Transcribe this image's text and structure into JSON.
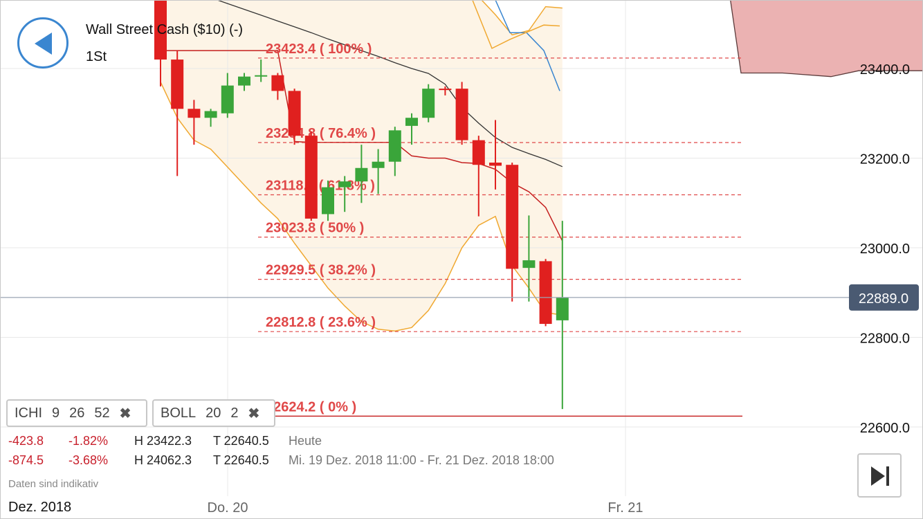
{
  "header": {
    "title": "Wall Street Cash ($10) (-)",
    "timeframe": "1St"
  },
  "indicators": [
    {
      "name": "ICHI",
      "params": [
        "9",
        "26",
        "52"
      ],
      "close": "✖"
    },
    {
      "name": "BOLL",
      "params": [
        "20",
        "2"
      ],
      "close": "✖"
    }
  ],
  "stats": [
    {
      "change": "-423.8",
      "pct": "-1.82%",
      "high": "H 23422.3",
      "low": "T 22640.5",
      "period": "Heute"
    },
    {
      "change": "-874.5",
      "pct": "-3.68%",
      "high": "H 24062.3",
      "low": "T 22640.5",
      "period": "Mi. 19 Dez. 2018 11:00 - Fr. 21 Dez. 2018 18:00"
    }
  ],
  "note": "Daten sind indikativ",
  "date_left": "Dez. 2018",
  "colors": {
    "up": "#3aa53a",
    "down": "#e0201f",
    "fib": "#e04848",
    "boll": "#f0a830",
    "price_tag": "#4a5a72",
    "cloud": "#ebb2b2"
  },
  "chart_data": {
    "type": "candlestick",
    "y_ticks": [
      "23400.0",
      "23200.0",
      "23000.0",
      "22800.0",
      "22600.0"
    ],
    "ylim": [
      22560,
      23560
    ],
    "x_ticks": [
      "Do. 20",
      "Fr. 21"
    ],
    "current_price": "22889.0",
    "fibonacci": [
      {
        "label": "23423.4 ( 100% )",
        "value": 23423.4
      },
      {
        "label": "23234.8 ( 76.4% )",
        "value": 23234.8
      },
      {
        "label": "23118.1 ( 61.8% )",
        "value": 23118.1
      },
      {
        "label": "23023.8 ( 50% )",
        "value": 23023.8
      },
      {
        "label": "22929.5 ( 38.2% )",
        "value": 22929.5
      },
      {
        "label": "22812.8 ( 23.6% )",
        "value": 22812.8
      },
      {
        "label": "22624.2 ( 0% )",
        "value": 22624.2
      }
    ],
    "candles": [
      {
        "i": 0,
        "o": 23560,
        "h": 23570,
        "l": 23360,
        "c": 23420
      },
      {
        "i": 1,
        "o": 23420,
        "h": 23440,
        "l": 23160,
        "c": 23310
      },
      {
        "i": 2,
        "o": 23310,
        "h": 23330,
        "l": 23230,
        "c": 23290
      },
      {
        "i": 3,
        "o": 23290,
        "h": 23310,
        "l": 23270,
        "c": 23305
      },
      {
        "i": 4,
        "o": 23300,
        "h": 23390,
        "l": 23290,
        "c": 23362
      },
      {
        "i": 5,
        "o": 23362,
        "h": 23390,
        "l": 23350,
        "c": 23382
      },
      {
        "i": 6,
        "o": 23383,
        "h": 23420,
        "l": 23370,
        "c": 23385
      },
      {
        "i": 7,
        "o": 23385,
        "h": 23390,
        "l": 23330,
        "c": 23350
      },
      {
        "i": 8,
        "o": 23350,
        "h": 23355,
        "l": 23230,
        "c": 23250
      },
      {
        "i": 9,
        "o": 23250,
        "h": 23260,
        "l": 23060,
        "c": 23065
      },
      {
        "i": 10,
        "o": 23075,
        "h": 23150,
        "l": 23060,
        "c": 23135
      },
      {
        "i": 11,
        "o": 23135,
        "h": 23160,
        "l": 23080,
        "c": 23148
      },
      {
        "i": 12,
        "o": 23148,
        "h": 23230,
        "l": 23100,
        "c": 23178
      },
      {
        "i": 13,
        "o": 23178,
        "h": 23220,
        "l": 23120,
        "c": 23192
      },
      {
        "i": 14,
        "o": 23192,
        "h": 23270,
        "l": 23160,
        "c": 23262
      },
      {
        "i": 15,
        "o": 23272,
        "h": 23300,
        "l": 23230,
        "c": 23290
      },
      {
        "i": 16,
        "o": 23290,
        "h": 23365,
        "l": 23280,
        "c": 23355
      },
      {
        "i": 17,
        "o": 23355,
        "h": 23360,
        "l": 23340,
        "c": 23352
      },
      {
        "i": 18,
        "o": 23355,
        "h": 23370,
        "l": 23230,
        "c": 23240
      },
      {
        "i": 19,
        "o": 23240,
        "h": 23250,
        "l": 23070,
        "c": 23185
      },
      {
        "i": 20,
        "o": 23190,
        "h": 23285,
        "l": 23130,
        "c": 23183
      },
      {
        "i": 21,
        "o": 23185,
        "h": 23190,
        "l": 22880,
        "c": 22953
      },
      {
        "i": 22,
        "o": 22955,
        "h": 23072,
        "l": 22880,
        "c": 22972
      },
      {
        "i": 23,
        "o": 22970,
        "h": 22975,
        "l": 22825,
        "c": 22830
      },
      {
        "i": 24,
        "o": 22838,
        "h": 23060,
        "l": 22640,
        "c": 22889
      }
    ],
    "bollinger": {
      "upper": [
        23560,
        23560,
        23560,
        23560,
        23560,
        23560,
        23560,
        23560,
        23560,
        23560,
        23560,
        23560,
        23560,
        23560,
        23560,
        23560,
        23560,
        23560,
        23560,
        23560,
        23520,
        23475,
        23485,
        23538,
        23535
      ],
      "middle": [
        23440,
        23440,
        23440,
        23440,
        23440,
        23440,
        23440,
        23440,
        23237,
        23235,
        23235,
        23235,
        23235,
        23235,
        23235,
        23205,
        23200,
        23200,
        23190,
        23188,
        23175,
        23145,
        23125,
        23090,
        23015
      ],
      "lower": [
        23370,
        23290,
        23240,
        23220,
        23180,
        23140,
        23100,
        23065,
        23010,
        22960,
        22910,
        22870,
        22835,
        22818,
        22814,
        22822,
        22860,
        22920,
        23000,
        23050,
        23070,
        22960,
        22910,
        22855,
        22850
      ]
    },
    "ichimoku_conversion": [
      23560,
      23560,
      23560,
      23560,
      23560,
      23560,
      23560,
      23560,
      23560,
      23560,
      23560,
      23560,
      23560,
      23560,
      23560,
      23560,
      23560,
      23560,
      23520,
      23495,
      23450,
      23448,
      23428,
      23395,
      23335
    ],
    "ichimoku_base": [
      23580,
      23575,
      23568,
      23558,
      23545,
      23532,
      23519,
      23506,
      23493,
      23480,
      23466,
      23453,
      23440,
      23427,
      23413,
      23400,
      23389,
      23365,
      23313,
      23278,
      23246,
      23224,
      23210,
      23197,
      23181
    ],
    "cloud": {
      "top_start": 23560,
      "bottom": [
        23390,
        23390,
        23382,
        23395,
        23395
      ]
    }
  }
}
